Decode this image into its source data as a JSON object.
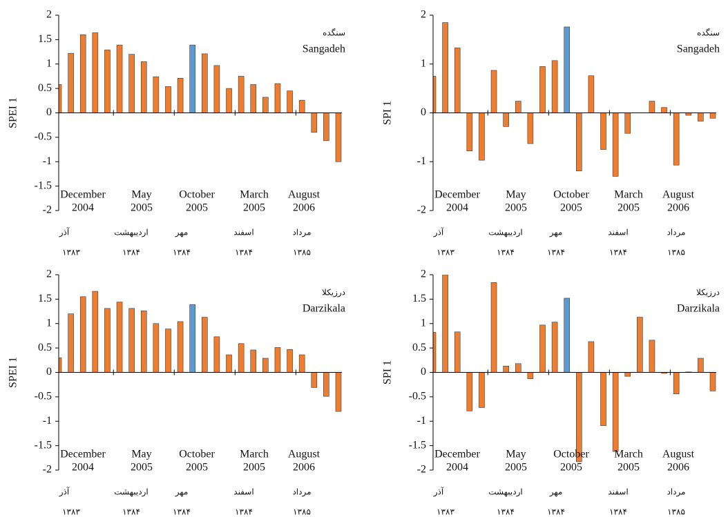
{
  "chart_data": [
    {
      "type": "bar",
      "ylabel": "SPEI 1",
      "station_fa": "سنگده",
      "station": "Sangadeh",
      "values": [
        0.58,
        1.22,
        1.6,
        1.64,
        1.29,
        1.39,
        1.2,
        1.05,
        0.74,
        0.54,
        0.71,
        1.39,
        1.21,
        0.97,
        0.5,
        0.75,
        0.58,
        0.32,
        0.6,
        0.45,
        0.26,
        -0.4,
        -0.57,
        -1.0
      ],
      "color": "#ed7d31",
      "highlight": {
        "index": 11,
        "color": "#5b9bd5"
      },
      "ylim": [
        -2,
        2
      ],
      "yticks": [
        -2,
        -1.5,
        -1,
        -0.5,
        0,
        0.5,
        1,
        1.5,
        2
      ],
      "x_labels": [
        {
          "month": "December",
          "year": "2004",
          "fa_month": "آذر",
          "fa_year": "۱۳۸۳"
        },
        {
          "month": "May",
          "year": "2005",
          "fa_month": "اردیبهشت",
          "fa_year": "۱۳۸۴"
        },
        {
          "month": "October",
          "year": "2005",
          "fa_month": "مهر",
          "fa_year": "۱۳۸۴"
        },
        {
          "month": "March",
          "year": "2005",
          "fa_month": "اسفند",
          "fa_year": "۱۳۸۴"
        },
        {
          "month": "August",
          "year": "2006",
          "fa_month": "مرداد",
          "fa_year": "۱۳۸۵"
        }
      ]
    },
    {
      "type": "bar",
      "ylabel": "SPI 1",
      "station_fa": "سنگده",
      "station": "Sangadeh",
      "values": [
        0.75,
        1.85,
        1.33,
        -0.78,
        -0.97,
        0.87,
        -0.28,
        0.24,
        -0.63,
        0.95,
        1.07,
        1.76,
        -1.19,
        0.76,
        -0.75,
        -1.3,
        -0.42,
        0,
        0.24,
        0.11,
        -1.07,
        -0.05,
        -0.17,
        -0.11
      ],
      "color": "#ed7d31",
      "highlight": {
        "index": 11,
        "color": "#5b9bd5"
      },
      "ylim": [
        -2,
        2
      ],
      "yticks": [
        -2,
        -1,
        0,
        1,
        2
      ],
      "x_labels": [
        {
          "month": "December",
          "year": "2004",
          "fa_month": "آذر",
          "fa_year": "۱۳۸۳"
        },
        {
          "month": "May",
          "year": "2005",
          "fa_month": "اردیبهشت",
          "fa_year": "۱۳۸۴"
        },
        {
          "month": "October",
          "year": "2005",
          "fa_month": "مهر",
          "fa_year": "۱۳۸۴"
        },
        {
          "month": "March",
          "year": "2005",
          "fa_month": "اسفند",
          "fa_year": "۱۳۸۴"
        },
        {
          "month": "August",
          "year": "2006",
          "fa_month": "مرداد",
          "fa_year": "۱۳۸۵"
        }
      ]
    },
    {
      "type": "bar",
      "ylabel": "SPEI 1",
      "station_fa": "درزیکلا",
      "station": "Darzikala",
      "values": [
        0.3,
        1.2,
        1.55,
        1.66,
        1.31,
        1.44,
        1.31,
        1.26,
        1.0,
        0.89,
        1.04,
        1.39,
        1.13,
        0.73,
        0.36,
        0.59,
        0.46,
        0.29,
        0.51,
        0.47,
        0.36,
        -0.31,
        -0.49,
        -0.8
      ],
      "color": "#ed7d31",
      "highlight": {
        "index": 11,
        "color": "#5b9bd5"
      },
      "ylim": [
        -2,
        2
      ],
      "yticks": [
        -2,
        -1.5,
        -1,
        -0.5,
        0,
        0.5,
        1,
        1.5,
        2
      ],
      "x_labels": [
        {
          "month": "December",
          "year": "2004",
          "fa_month": "آذر",
          "fa_year": "۱۳۸۳"
        },
        {
          "month": "May",
          "year": "2005",
          "fa_month": "اردیبهشت",
          "fa_year": "۱۳۸۴"
        },
        {
          "month": "October",
          "year": "2005",
          "fa_month": "مهر",
          "fa_year": "۱۳۸۴"
        },
        {
          "month": "March",
          "year": "2005",
          "fa_month": "اسفند",
          "fa_year": "۱۳۸۴"
        },
        {
          "month": "August",
          "year": "2006",
          "fa_month": "مرداد",
          "fa_year": "۱۳۸۵"
        }
      ]
    },
    {
      "type": "bar",
      "ylabel": "SPI 1",
      "station_fa": "درزیکلا",
      "station": "Darzikala",
      "values": [
        0.82,
        2.0,
        0.83,
        -0.79,
        -0.72,
        1.84,
        0.13,
        0.18,
        -0.13,
        0.97,
        1.03,
        1.52,
        -1.83,
        0.63,
        -1.09,
        -1.62,
        -0.08,
        1.13,
        0.66,
        -0.02,
        -0.44,
        0.01,
        0.29,
        -0.38
      ],
      "color": "#ed7d31",
      "highlight": {
        "index": 11,
        "color": "#5b9bd5"
      },
      "ylim": [
        -2,
        2
      ],
      "yticks": [
        -2,
        -1.5,
        -1,
        -0.5,
        0,
        0.5,
        1,
        1.5,
        2
      ],
      "x_labels": [
        {
          "month": "December",
          "year": "2004",
          "fa_month": "آذر",
          "fa_year": "۱۳۸۳"
        },
        {
          "month": "May",
          "year": "2005",
          "fa_month": "اردیبهشت",
          "fa_year": "۱۳۸۴"
        },
        {
          "month": "October",
          "year": "2005",
          "fa_month": "مهر",
          "fa_year": "۱۳۸۴"
        },
        {
          "month": "March",
          "year": "2005",
          "fa_month": "اسفند",
          "fa_year": "۱۳۸۴"
        },
        {
          "month": "August",
          "year": "2006",
          "fa_month": "مرداد",
          "fa_year": "۱۳۸۵"
        }
      ]
    }
  ]
}
